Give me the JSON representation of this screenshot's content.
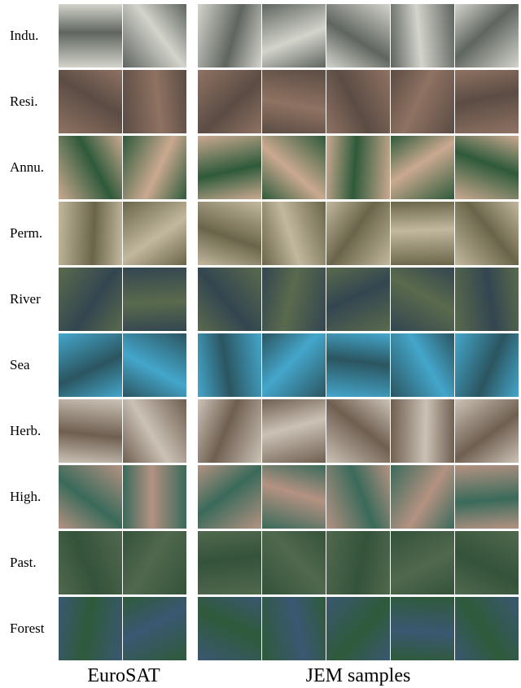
{
  "rows": [
    "Indu.",
    "Resi.",
    "Annu.",
    "Perm.",
    "River",
    "Sea",
    "Herb.",
    "High.",
    "Past.",
    "Forest"
  ],
  "captions": {
    "left": "EuroSAT",
    "right": "JEM samples"
  }
}
